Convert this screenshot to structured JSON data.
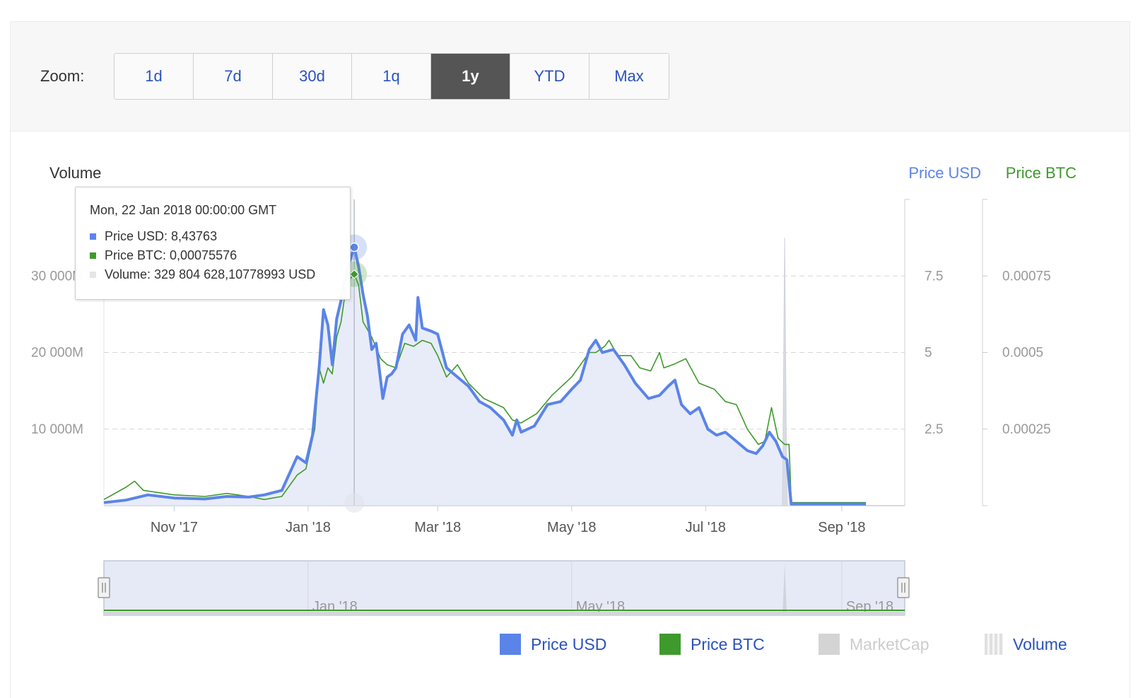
{
  "zoom": {
    "label": "Zoom:",
    "buttons": [
      "1d",
      "7d",
      "30d",
      "1q",
      "1y",
      "YTD",
      "Max"
    ],
    "active": "1y"
  },
  "colors": {
    "usd": "#5b84e8",
    "btc": "#3e9a2c",
    "area": "#e8ecf9",
    "grid": "#d6d6d6",
    "marketcap": "#cccccc",
    "volume_legend": "#2a52be"
  },
  "tooltip": {
    "date": "Mon, 22 Jan 2018 00:00:00 GMT",
    "usd": "Price USD: 8,43763",
    "btc": "Price BTC: 0,00075576",
    "volume": "Volume: 329 804 628,10778993 USD"
  },
  "legend": {
    "usd": "Price USD",
    "btc": "Price BTC",
    "marketcap": "MarketCap",
    "volume": "Volume"
  },
  "chart_data": {
    "type": "line",
    "x_start": "2017-09-30",
    "x_tick_labels": [
      "Nov '17",
      "Jan '18",
      "Mar '18",
      "May '18",
      "Jul '18",
      "Sep '18"
    ],
    "x_tick_dates": [
      "2017-11-01",
      "2018-01-01",
      "2018-03-01",
      "2018-05-01",
      "2018-07-01",
      "2018-09-01"
    ],
    "navigator_labels": [
      "Jan '18",
      "May '18",
      "Sep '18"
    ],
    "navigator_dates": [
      "2018-01-01",
      "2018-05-01",
      "2018-09-01"
    ],
    "axes": {
      "volume": {
        "title": "Volume",
        "range": [
          0,
          40000000000
        ],
        "ticks": [
          10000000000,
          20000000000,
          30000000000
        ],
        "tick_labels": [
          "10 000M",
          "20 000M",
          "30 000M"
        ]
      },
      "usd": {
        "title": "Price USD",
        "range": [
          0,
          10
        ],
        "ticks": [
          2.5,
          5,
          7.5
        ],
        "tick_labels": [
          "2.5",
          "5",
          "7.5"
        ]
      },
      "btc": {
        "title": "Price BTC",
        "range": [
          0,
          0.001
        ],
        "ticks": [
          0.00025,
          0.0005,
          0.00075
        ],
        "tick_labels": [
          "0.00025",
          "0.0005",
          "0.00075"
        ]
      }
    },
    "series": [
      {
        "name": "Price USD",
        "axis": "usd",
        "points": [
          [
            "2017-09-30",
            0.1
          ],
          [
            "2017-10-10",
            0.18
          ],
          [
            "2017-10-20",
            0.35
          ],
          [
            "2017-11-01",
            0.25
          ],
          [
            "2017-11-15",
            0.22
          ],
          [
            "2017-11-25",
            0.3
          ],
          [
            "2017-12-05",
            0.28
          ],
          [
            "2017-12-12",
            0.35
          ],
          [
            "2017-12-20",
            0.5
          ],
          [
            "2017-12-27",
            1.6
          ],
          [
            "2017-12-31",
            1.4
          ],
          [
            "2018-01-03",
            2.3
          ],
          [
            "2018-01-06",
            4.5
          ],
          [
            "2018-01-08",
            6.4
          ],
          [
            "2018-01-10",
            5.9
          ],
          [
            "2018-01-12",
            4.6
          ],
          [
            "2018-01-14",
            6.1
          ],
          [
            "2018-01-16",
            6.7
          ],
          [
            "2018-01-18",
            7.5
          ],
          [
            "2018-01-20",
            8.0
          ],
          [
            "2018-01-22",
            8.43763
          ],
          [
            "2018-01-24",
            7.8
          ],
          [
            "2018-01-26",
            6.9
          ],
          [
            "2018-01-28",
            6.2
          ],
          [
            "2018-01-30",
            5.1
          ],
          [
            "2018-02-01",
            5.3
          ],
          [
            "2018-02-04",
            3.5
          ],
          [
            "2018-02-06",
            4.2
          ],
          [
            "2018-02-08",
            4.3
          ],
          [
            "2018-02-10",
            4.5
          ],
          [
            "2018-02-13",
            5.6
          ],
          [
            "2018-02-16",
            5.9
          ],
          [
            "2018-02-19",
            5.4
          ],
          [
            "2018-02-20",
            6.8
          ],
          [
            "2018-02-22",
            5.8
          ],
          [
            "2018-02-26",
            5.7
          ],
          [
            "2018-03-01",
            5.6
          ],
          [
            "2018-03-05",
            4.5
          ],
          [
            "2018-03-10",
            4.2
          ],
          [
            "2018-03-15",
            3.9
          ],
          [
            "2018-03-20",
            3.4
          ],
          [
            "2018-03-25",
            3.2
          ],
          [
            "2018-03-31",
            2.8
          ],
          [
            "2018-04-04",
            2.3
          ],
          [
            "2018-04-06",
            2.8
          ],
          [
            "2018-04-08",
            2.4
          ],
          [
            "2018-04-14",
            2.6
          ],
          [
            "2018-04-20",
            3.3
          ],
          [
            "2018-04-26",
            3.4
          ],
          [
            "2018-05-01",
            3.8
          ],
          [
            "2018-05-05",
            4.1
          ],
          [
            "2018-05-09",
            5.1
          ],
          [
            "2018-05-12",
            5.4
          ],
          [
            "2018-05-15",
            5.0
          ],
          [
            "2018-05-20",
            5.1
          ],
          [
            "2018-05-25",
            4.6
          ],
          [
            "2018-05-30",
            4.0
          ],
          [
            "2018-06-05",
            3.5
          ],
          [
            "2018-06-10",
            3.6
          ],
          [
            "2018-06-14",
            3.9
          ],
          [
            "2018-06-17",
            4.1
          ],
          [
            "2018-06-20",
            3.3
          ],
          [
            "2018-06-24",
            3.0
          ],
          [
            "2018-06-28",
            3.2
          ],
          [
            "2018-07-02",
            2.5
          ],
          [
            "2018-07-06",
            2.3
          ],
          [
            "2018-07-10",
            2.4
          ],
          [
            "2018-07-15",
            2.1
          ],
          [
            "2018-07-20",
            1.8
          ],
          [
            "2018-07-24",
            1.7
          ],
          [
            "2018-07-27",
            1.95
          ],
          [
            "2018-07-30",
            2.4
          ],
          [
            "2018-08-02",
            2.1
          ],
          [
            "2018-08-05",
            1.6
          ],
          [
            "2018-08-07",
            1.5
          ],
          [
            "2018-08-09",
            0.05
          ],
          [
            "2018-09-12",
            0.05
          ]
        ]
      },
      {
        "name": "Price BTC",
        "axis": "btc",
        "points": [
          [
            "2017-09-30",
            2e-05
          ],
          [
            "2017-10-10",
            6e-05
          ],
          [
            "2017-10-14",
            8e-05
          ],
          [
            "2017-10-18",
            5e-05
          ],
          [
            "2017-11-01",
            3.5e-05
          ],
          [
            "2017-11-15",
            3e-05
          ],
          [
            "2017-11-25",
            4e-05
          ],
          [
            "2017-12-05",
            3e-05
          ],
          [
            "2017-12-12",
            2e-05
          ],
          [
            "2017-12-20",
            3e-05
          ],
          [
            "2017-12-27",
            0.0001
          ],
          [
            "2017-12-31",
            0.00012
          ],
          [
            "2018-01-04",
            0.00025
          ],
          [
            "2018-01-06",
            0.00045
          ],
          [
            "2018-01-08",
            0.0004
          ],
          [
            "2018-01-10",
            0.00045
          ],
          [
            "2018-01-12",
            0.00043
          ],
          [
            "2018-01-14",
            0.00055
          ],
          [
            "2018-01-16",
            0.0006
          ],
          [
            "2018-01-18",
            0.0007
          ],
          [
            "2018-01-20",
            0.00074
          ],
          [
            "2018-01-22",
            0.00075576
          ],
          [
            "2018-01-24",
            0.00072
          ],
          [
            "2018-01-26",
            0.0006
          ],
          [
            "2018-01-30",
            0.00055
          ],
          [
            "2018-02-03",
            0.00048
          ],
          [
            "2018-02-06",
            0.00046
          ],
          [
            "2018-02-10",
            0.00045
          ],
          [
            "2018-02-14",
            0.00053
          ],
          [
            "2018-02-18",
            0.00052
          ],
          [
            "2018-02-22",
            0.00054
          ],
          [
            "2018-02-26",
            0.00053
          ],
          [
            "2018-03-01",
            0.00049
          ],
          [
            "2018-03-05",
            0.00042
          ],
          [
            "2018-03-10",
            0.00046
          ],
          [
            "2018-03-15",
            0.0004
          ],
          [
            "2018-03-22",
            0.00035
          ],
          [
            "2018-03-31",
            0.00032
          ],
          [
            "2018-04-04",
            0.00028
          ],
          [
            "2018-04-08",
            0.00027
          ],
          [
            "2018-04-15",
            0.0003
          ],
          [
            "2018-04-22",
            0.00036
          ],
          [
            "2018-04-28",
            0.0004
          ],
          [
            "2018-05-01",
            0.00042
          ],
          [
            "2018-05-05",
            0.00046
          ],
          [
            "2018-05-09",
            0.0005
          ],
          [
            "2018-05-12",
            0.0005
          ],
          [
            "2018-05-16",
            0.00052
          ],
          [
            "2018-05-18",
            0.00054
          ],
          [
            "2018-05-22",
            0.00049
          ],
          [
            "2018-05-28",
            0.00049
          ],
          [
            "2018-06-01",
            0.00045
          ],
          [
            "2018-06-06",
            0.00044
          ],
          [
            "2018-06-10",
            0.0005
          ],
          [
            "2018-06-12",
            0.00045
          ],
          [
            "2018-06-16",
            0.00046
          ],
          [
            "2018-06-22",
            0.00048
          ],
          [
            "2018-06-28",
            0.0004
          ],
          [
            "2018-07-05",
            0.00038
          ],
          [
            "2018-07-10",
            0.00034
          ],
          [
            "2018-07-15",
            0.00033
          ],
          [
            "2018-07-20",
            0.00025
          ],
          [
            "2018-07-25",
            0.0002
          ],
          [
            "2018-07-28",
            0.00021
          ],
          [
            "2018-07-31",
            0.00032
          ],
          [
            "2018-08-03",
            0.00022
          ],
          [
            "2018-08-06",
            0.0002
          ],
          [
            "2018-08-08",
            0.0002
          ],
          [
            "2018-08-09",
            1e-05
          ],
          [
            "2018-09-12",
            1e-05
          ]
        ]
      },
      {
        "name": "Volume",
        "axis": "volume",
        "points": [
          [
            "2017-09-30",
            0
          ],
          [
            "2018-08-05",
            0
          ],
          [
            "2018-08-06",
            35000000000
          ],
          [
            "2018-08-07",
            0
          ],
          [
            "2018-09-12",
            0
          ]
        ]
      }
    ]
  }
}
